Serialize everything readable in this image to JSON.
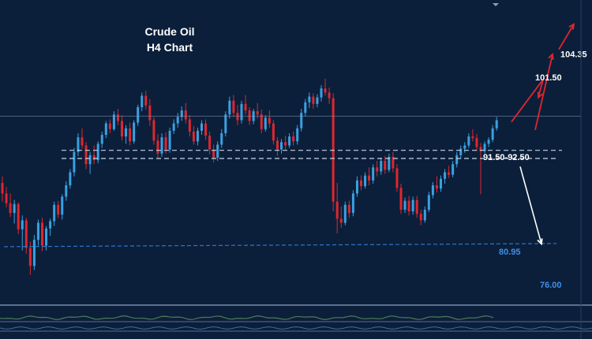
{
  "title_lines": [
    "Crude Oil",
    "H4 Chart"
  ],
  "colors": {
    "background": "#0b1f3a",
    "candle_up": "#3aa0e0",
    "candle_down": "#e0262e",
    "dashed_level": "#c8d3e6",
    "support_level": "#2f73c9",
    "arrow_up": "#e0262e",
    "arrow_down": "#ffffff",
    "label_white": "#ffffff",
    "label_blue": "#3f8fe8"
  },
  "chart_data": {
    "type": "candlestick",
    "instrument": "Crude Oil",
    "timeframe": "H4",
    "ylim": [
      73,
      110
    ],
    "levels": [
      {
        "id": "resistance-zone",
        "label": "91.50-92.50",
        "values": [
          91.5,
          92.5
        ],
        "style": "dashed",
        "color": "#c8d3e6"
      },
      {
        "id": "support",
        "label": "80.95",
        "value": 80.95,
        "style": "dashed",
        "color": "#2f73c9"
      },
      {
        "id": "lower",
        "label": "76.00",
        "value": 76.0,
        "style": "label",
        "color": "#3f8fe8"
      },
      {
        "id": "flat-line",
        "label": "",
        "value": 96.7,
        "style": "solid",
        "color": "#8aa0bd"
      }
    ],
    "projection_targets": [
      {
        "label": "101.50",
        "value": 101.5,
        "direction": "up"
      },
      {
        "label": "104.35",
        "value": 104.35,
        "direction": "up"
      }
    ],
    "path_bullish": [
      96.0,
      101.2,
      99.0,
      104.3,
      103.0,
      108.0
    ],
    "path_bearish": [
      90.5,
      81.0
    ],
    "ohlc": [
      [
        88.5,
        89.3,
        86.2,
        87.2
      ],
      [
        87.2,
        88.0,
        85.5,
        86.0
      ],
      [
        86.0,
        87.2,
        84.3,
        84.8
      ],
      [
        84.8,
        86.4,
        83.5,
        85.9
      ],
      [
        85.9,
        86.1,
        82.2,
        82.8
      ],
      [
        82.8,
        84.5,
        80.2,
        83.9
      ],
      [
        83.9,
        84.2,
        79.8,
        80.5
      ],
      [
        80.5,
        81.3,
        77.2,
        78.3
      ],
      [
        78.3,
        82.1,
        77.8,
        81.5
      ],
      [
        81.5,
        84.0,
        80.8,
        83.6
      ],
      [
        83.6,
        84.2,
        80.1,
        80.8
      ],
      [
        80.8,
        83.2,
        80.2,
        82.9
      ],
      [
        82.9,
        84.1,
        82.0,
        83.8
      ],
      [
        83.8,
        86.2,
        83.2,
        85.8
      ],
      [
        85.8,
        86.3,
        84.2,
        84.6
      ],
      [
        84.6,
        87.1,
        84.0,
        86.8
      ],
      [
        86.8,
        88.7,
        86.3,
        88.2
      ],
      [
        88.2,
        90.2,
        87.8,
        89.8
      ],
      [
        89.8,
        92.8,
        89.3,
        92.3
      ],
      [
        92.3,
        94.6,
        91.8,
        94.1
      ],
      [
        94.1,
        95.2,
        92.7,
        93.1
      ],
      [
        93.1,
        93.5,
        90.2,
        90.8
      ],
      [
        90.8,
        92.3,
        89.6,
        91.9
      ],
      [
        91.9,
        93.1,
        90.8,
        91.3
      ],
      [
        91.3,
        93.6,
        90.9,
        93.3
      ],
      [
        93.3,
        94.8,
        92.8,
        94.4
      ],
      [
        94.4,
        96.1,
        94.0,
        95.8
      ],
      [
        95.8,
        96.3,
        94.6,
        95.1
      ],
      [
        95.1,
        97.3,
        94.9,
        96.9
      ],
      [
        96.9,
        97.6,
        95.6,
        96.1
      ],
      [
        96.1,
        96.8,
        93.7,
        94.2
      ],
      [
        94.2,
        95.6,
        93.3,
        95.2
      ],
      [
        95.2,
        95.9,
        93.1,
        93.6
      ],
      [
        93.6,
        96.2,
        93.3,
        95.9
      ],
      [
        95.9,
        98.1,
        95.5,
        97.8
      ],
      [
        97.8,
        99.6,
        97.3,
        99.2
      ],
      [
        99.2,
        99.8,
        97.5,
        98.0
      ],
      [
        98.0,
        98.8,
        95.5,
        96.2
      ],
      [
        96.2,
        96.6,
        93.2,
        93.7
      ],
      [
        93.7,
        94.5,
        91.6,
        92.1
      ],
      [
        92.1,
        94.6,
        91.7,
        94.1
      ],
      [
        94.1,
        94.7,
        92.1,
        92.6
      ],
      [
        92.6,
        95.3,
        92.2,
        94.9
      ],
      [
        94.9,
        96.3,
        94.5,
        95.8
      ],
      [
        95.8,
        97.1,
        95.3,
        96.6
      ],
      [
        96.6,
        97.9,
        96.1,
        97.4
      ],
      [
        97.4,
        98.3,
        95.8,
        96.3
      ],
      [
        96.3,
        96.8,
        94.2,
        94.8
      ],
      [
        94.8,
        95.5,
        93.2,
        93.6
      ],
      [
        93.6,
        95.3,
        93.1,
        94.9
      ],
      [
        94.9,
        96.2,
        94.4,
        95.8
      ],
      [
        95.8,
        96.3,
        93.8,
        94.3
      ],
      [
        94.3,
        94.8,
        92.0,
        92.6
      ],
      [
        92.6,
        93.2,
        91.0,
        91.6
      ],
      [
        91.6,
        93.6,
        91.2,
        93.2
      ],
      [
        93.2,
        95.1,
        92.8,
        94.6
      ],
      [
        94.6,
        97.3,
        94.2,
        96.9
      ],
      [
        96.9,
        99.1,
        96.4,
        98.6
      ],
      [
        98.6,
        99.3,
        96.6,
        97.1
      ],
      [
        97.1,
        98.1,
        95.6,
        96.2
      ],
      [
        96.2,
        98.6,
        95.8,
        98.2
      ],
      [
        98.2,
        99.3,
        96.9,
        97.4
      ],
      [
        97.4,
        97.8,
        95.6,
        96.1
      ],
      [
        96.1,
        97.6,
        95.7,
        97.3
      ],
      [
        97.3,
        98.3,
        96.4,
        96.9
      ],
      [
        96.9,
        97.5,
        94.6,
        95.1
      ],
      [
        95.1,
        96.8,
        94.8,
        96.5
      ],
      [
        96.5,
        97.4,
        95.3,
        95.8
      ],
      [
        95.8,
        96.2,
        93.2,
        93.7
      ],
      [
        93.7,
        94.1,
        91.8,
        92.6
      ],
      [
        92.6,
        93.9,
        92.1,
        93.5
      ],
      [
        93.5,
        94.3,
        92.6,
        93.1
      ],
      [
        93.1,
        94.6,
        92.8,
        94.2
      ],
      [
        94.2,
        94.8,
        93.1,
        93.6
      ],
      [
        93.6,
        95.6,
        93.2,
        95.2
      ],
      [
        95.2,
        97.6,
        94.8,
        97.1
      ],
      [
        97.1,
        98.8,
        96.7,
        98.4
      ],
      [
        98.4,
        99.6,
        97.7,
        99.1
      ],
      [
        99.1,
        99.5,
        97.6,
        98.2
      ],
      [
        98.2,
        99.4,
        97.8,
        99.0
      ],
      [
        99.0,
        100.5,
        98.5,
        100.1
      ],
      [
        100.1,
        101.3,
        99.2,
        99.6
      ],
      [
        99.6,
        100.2,
        98.2,
        98.9
      ],
      [
        98.9,
        99.5,
        85.0,
        86.2
      ],
      [
        86.2,
        88.5,
        82.3,
        84.1
      ],
      [
        84.1,
        85.6,
        83.0,
        83.6
      ],
      [
        83.6,
        86.2,
        83.3,
        85.8
      ],
      [
        85.8,
        86.3,
        84.2,
        84.8
      ],
      [
        84.8,
        87.6,
        84.4,
        87.2
      ],
      [
        87.2,
        89.3,
        86.8,
        88.8
      ],
      [
        88.8,
        89.4,
        87.6,
        88.1
      ],
      [
        88.1,
        89.8,
        87.8,
        89.4
      ],
      [
        89.4,
        90.4,
        88.2,
        88.8
      ],
      [
        88.8,
        90.8,
        88.4,
        90.4
      ],
      [
        90.4,
        91.2,
        89.3,
        89.9
      ],
      [
        89.9,
        91.6,
        89.5,
        91.2
      ],
      [
        91.2,
        91.8,
        89.6,
        90.1
      ],
      [
        90.1,
        92.1,
        89.8,
        91.7
      ],
      [
        91.7,
        92.3,
        89.8,
        90.3
      ],
      [
        90.3,
        90.8,
        87.4,
        87.9
      ],
      [
        87.9,
        88.4,
        84.7,
        85.2
      ],
      [
        85.2,
        86.7,
        84.8,
        86.3
      ],
      [
        86.3,
        86.9,
        84.5,
        85.0
      ],
      [
        85.0,
        86.8,
        84.6,
        86.4
      ],
      [
        86.4,
        86.9,
        84.2,
        84.7
      ],
      [
        84.7,
        85.2,
        83.3,
        83.9
      ],
      [
        83.9,
        85.6,
        83.6,
        85.2
      ],
      [
        85.2,
        87.4,
        84.9,
        87.0
      ],
      [
        87.0,
        88.6,
        86.6,
        88.2
      ],
      [
        88.2,
        89.3,
        87.3,
        87.8
      ],
      [
        87.8,
        89.4,
        87.4,
        89.0
      ],
      [
        89.0,
        90.2,
        88.4,
        89.8
      ],
      [
        89.8,
        90.6,
        89.1,
        89.5
      ],
      [
        89.5,
        91.2,
        89.2,
        90.8
      ],
      [
        90.8,
        92.3,
        90.4,
        91.9
      ],
      [
        91.9,
        93.1,
        91.5,
        92.7
      ],
      [
        92.7,
        93.5,
        92.2,
        93.1
      ],
      [
        93.1,
        94.6,
        92.8,
        94.2
      ],
      [
        94.2,
        95.1,
        93.6,
        94.0
      ],
      [
        94.0,
        94.5,
        92.4,
        92.9
      ],
      [
        92.9,
        93.4,
        87.1,
        92.4
      ],
      [
        92.4,
        93.6,
        92.1,
        93.3
      ],
      [
        93.3,
        94.1,
        92.9,
        93.8
      ],
      [
        93.8,
        95.6,
        93.5,
        95.2
      ],
      [
        95.2,
        96.6,
        94.9,
        96.2
      ]
    ]
  }
}
